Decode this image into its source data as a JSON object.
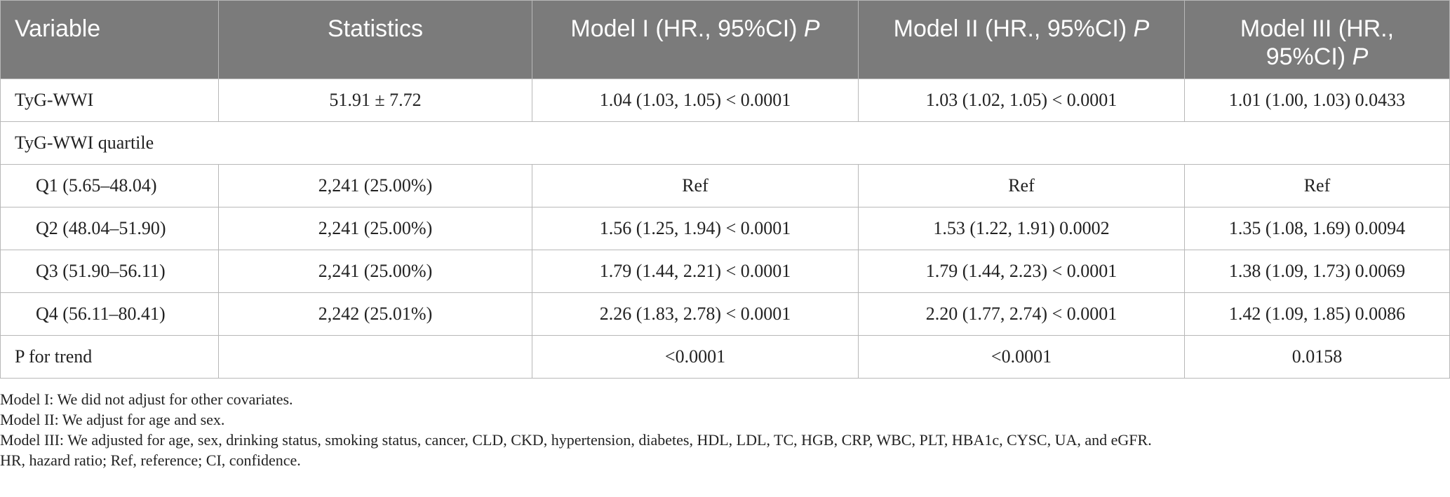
{
  "table": {
    "headers": [
      {
        "text": "Variable",
        "p": ""
      },
      {
        "text": "Statistics",
        "p": ""
      },
      {
        "text": "Model I (HR., 95%CI) ",
        "p": "P"
      },
      {
        "text": "Model II (HR., 95%CI) ",
        "p": "P"
      },
      {
        "text_line1": "Model III (HR.,",
        "text_line2": "95%CI) ",
        "p": "P"
      }
    ],
    "rows": [
      {
        "variable": "TyG-WWI",
        "statistics": "51.91 ± 7.72",
        "m1": "1.04 (1.03, 1.05) < 0.0001",
        "m2": "1.03 (1.02, 1.05) < 0.0001",
        "m3": "1.01 (1.00, 1.03) 0.0433"
      },
      {
        "variable": "TyG-WWI quartile"
      },
      {
        "variable": "Q1 (5.65–48.04)",
        "statistics": "2,241 (25.00%)",
        "m1": "Ref",
        "m2": "Ref",
        "m3": "Ref"
      },
      {
        "variable": "Q2 (48.04–51.90)",
        "statistics": "2,241 (25.00%)",
        "m1": "1.56 (1.25, 1.94) < 0.0001",
        "m2": "1.53 (1.22, 1.91) 0.0002",
        "m3": "1.35 (1.08, 1.69) 0.0094"
      },
      {
        "variable": "Q3 (51.90–56.11)",
        "statistics": "2,241 (25.00%)",
        "m1": "1.79 (1.44, 2.21) < 0.0001",
        "m2": "1.79 (1.44, 2.23) < 0.0001",
        "m3": "1.38 (1.09, 1.73) 0.0069"
      },
      {
        "variable": "Q4 (56.11–80.41)",
        "statistics": "2,242 (25.01%)",
        "m1": "2.26 (1.83, 2.78) < 0.0001",
        "m2": "2.20 (1.77, 2.74) < 0.0001",
        "m3": "1.42 (1.09, 1.85) 0.0086"
      },
      {
        "variable": "P for trend",
        "statistics": "",
        "m1": "<0.0001",
        "m2": "<0.0001",
        "m3": "0.0158"
      }
    ]
  },
  "notes": [
    "Model I: We did not adjust for other covariates.",
    "Model II: We adjust for age and sex.",
    "Model III: We adjusted for age, sex, drinking status, smoking status, cancer, CLD, CKD, hypertension, diabetes, HDL, LDL, TC, HGB, CRP, WBC, PLT, HBA1c, CYSC, UA, and eGFR.",
    "HR, hazard ratio; Ref, reference; CI, confidence."
  ]
}
